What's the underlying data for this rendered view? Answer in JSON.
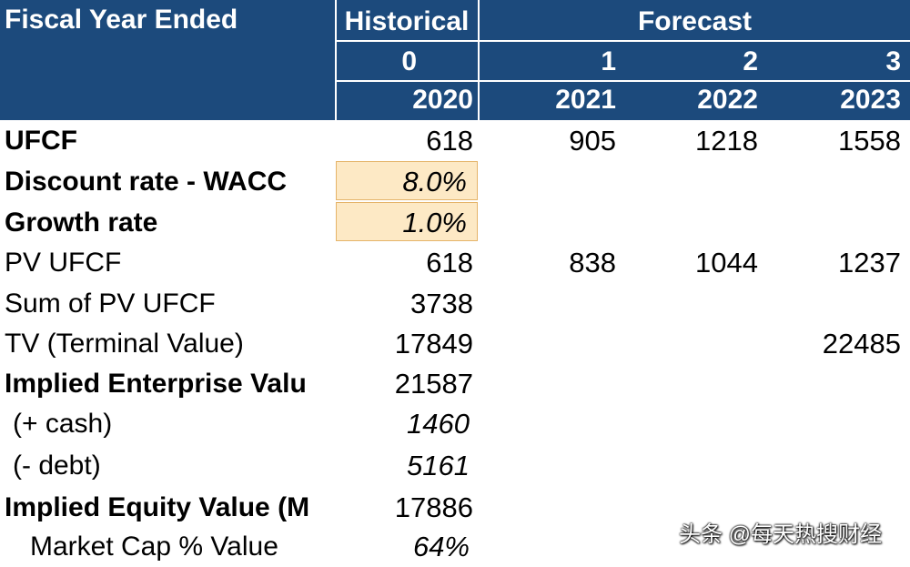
{
  "header": {
    "title": "Fiscal Year Ended",
    "historical": "Historical",
    "forecast": "Forecast",
    "periods": [
      "0",
      "1",
      "2",
      "3"
    ],
    "years": [
      "2020",
      "2021",
      "2022",
      "2023"
    ]
  },
  "rows": [
    {
      "label": "UFCF",
      "values": [
        "618",
        "905",
        "1218",
        "1558"
      ]
    },
    {
      "label": "Discount rate - WACC",
      "values": [
        "8.0%",
        "",
        "",
        ""
      ]
    },
    {
      "label": "Growth rate",
      "values": [
        "1.0%",
        "",
        "",
        ""
      ]
    },
    {
      "label": "PV UFCF",
      "values": [
        "618",
        "838",
        "1044",
        "1237"
      ]
    },
    {
      "label": "Sum of PV UFCF",
      "values": [
        "3738",
        "",
        "",
        ""
      ]
    },
    {
      "label": "TV (Terminal Value)",
      "values": [
        "17849",
        "",
        "",
        "22485"
      ]
    },
    {
      "label": "Implied Enterprise Valu",
      "values": [
        "21587",
        "",
        "",
        ""
      ]
    },
    {
      "label": " (+ cash)",
      "values": [
        "1460",
        "",
        "",
        ""
      ]
    },
    {
      "label": " (- debt)",
      "values": [
        "5161",
        "",
        "",
        ""
      ]
    },
    {
      "label": "Implied Equity Value (M",
      "values": [
        "17886",
        "",
        "",
        ""
      ]
    },
    {
      "label": "Market Cap % Value",
      "values": [
        "64%",
        "",
        "",
        ""
      ]
    }
  ],
  "watermark": "头条 @每天热搜财经",
  "colors": {
    "header_bg": "#1c4a7c",
    "input_fill": "#fde9c5",
    "input_border": "#e5b46a"
  }
}
